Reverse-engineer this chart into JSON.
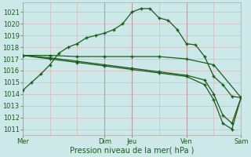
{
  "xlabel": "Pression niveau de la mer( hPa )",
  "ylim": [
    1010.5,
    1021.8
  ],
  "yticks": [
    1011,
    1012,
    1013,
    1014,
    1015,
    1016,
    1017,
    1018,
    1019,
    1020,
    1021
  ],
  "xtick_labels": [
    "Mer",
    "Dim",
    "Jeu",
    "Ven",
    "Sam"
  ],
  "xtick_positions": [
    0,
    36,
    48,
    72,
    96
  ],
  "xlim": [
    0,
    96
  ],
  "bg_color": "#cce8e8",
  "grid_color_minor": "#d8b8b8",
  "grid_color_major": "#b8a0a0",
  "line_color": "#1a5c1a",
  "vline_positions": [
    0,
    36,
    48,
    72,
    96
  ],
  "line1_x": [
    0,
    4,
    8,
    12,
    16,
    20,
    24,
    28,
    32,
    36,
    40,
    44,
    48,
    52,
    56,
    60,
    64,
    68,
    72,
    76,
    80,
    84,
    88,
    92,
    96
  ],
  "line1_y": [
    1014.3,
    1015.0,
    1015.7,
    1016.5,
    1017.5,
    1018.0,
    1018.3,
    1018.8,
    1019.0,
    1019.2,
    1019.5,
    1020.0,
    1021.0,
    1021.3,
    1021.3,
    1020.5,
    1020.3,
    1019.5,
    1018.3,
    1018.2,
    1017.2,
    1015.5,
    1014.8,
    1013.8,
    1013.7
  ],
  "line2_x": [
    0,
    12,
    24,
    36,
    48,
    60,
    72,
    84,
    96
  ],
  "line2_y": [
    1017.3,
    1017.3,
    1017.2,
    1017.2,
    1017.2,
    1017.2,
    1017.0,
    1016.5,
    1013.7
  ],
  "line3_x": [
    0,
    12,
    24,
    36,
    48,
    60,
    72,
    80,
    84,
    88,
    92,
    96
  ],
  "line3_y": [
    1017.3,
    1017.0,
    1016.7,
    1016.4,
    1016.1,
    1015.8,
    1015.5,
    1014.8,
    1013.5,
    1011.5,
    1011.0,
    1013.7
  ],
  "line4_x": [
    0,
    12,
    24,
    36,
    48,
    60,
    72,
    80,
    84,
    88,
    92,
    96
  ],
  "line4_y": [
    1017.3,
    1017.1,
    1016.8,
    1016.5,
    1016.2,
    1015.9,
    1015.6,
    1015.2,
    1014.0,
    1012.2,
    1011.5,
    1013.7
  ]
}
